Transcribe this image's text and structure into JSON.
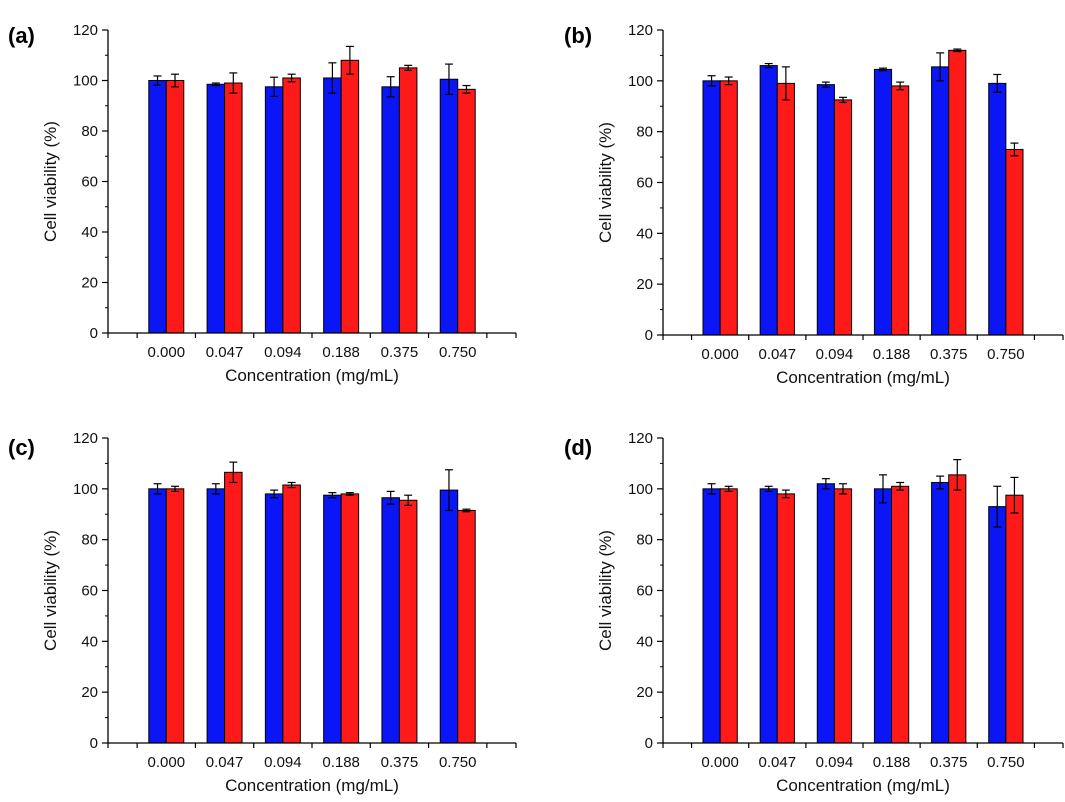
{
  "colors": {
    "series1": "#0a16f5",
    "series2": "#ff1a1a",
    "axis": "#000000",
    "error_bar": "#000000"
  },
  "chart_data": [
    {
      "panel": "(a)",
      "type": "bar",
      "xlabel": "Concentration (mg/mL)",
      "ylabel": "Cell viability (%)",
      "ylim": [
        0,
        120
      ],
      "yticks": [
        "0",
        "20",
        "40",
        "60",
        "80",
        "100",
        "120"
      ],
      "categories": [
        "0.000",
        "0.047",
        "0.094",
        "0.188",
        "0.375",
        "0.750"
      ],
      "grid": false,
      "series": [
        {
          "color": "#0a16f5",
          "values": [
            100,
            98.5,
            97.5,
            101,
            97.5,
            100.5
          ],
          "errors": [
            1.8,
            0.5,
            3.8,
            6,
            4,
            6
          ]
        },
        {
          "color": "#ff1a1a",
          "values": [
            100,
            99,
            101,
            108,
            105,
            96.5
          ],
          "errors": [
            2.5,
            4,
            1.5,
            5.5,
            1,
            1.5
          ]
        }
      ]
    },
    {
      "panel": "(b)",
      "type": "bar",
      "xlabel": "Concentration (mg/mL)",
      "ylabel": "Cell viability (%)",
      "ylim": [
        0,
        120
      ],
      "yticks": [
        "0",
        "20",
        "40",
        "60",
        "80",
        "100",
        "120"
      ],
      "categories": [
        "0.000",
        "0.047",
        "0.094",
        "0.188",
        "0.375",
        "0.750"
      ],
      "grid": false,
      "series": [
        {
          "color": "#0a16f5",
          "values": [
            100,
            106,
            98.5,
            104.5,
            105.5,
            99
          ],
          "errors": [
            2,
            0.8,
            1,
            0.5,
            5.5,
            3.5
          ]
        },
        {
          "color": "#ff1a1a",
          "values": [
            100,
            99,
            92.5,
            98,
            112,
            73
          ],
          "errors": [
            1.5,
            6.5,
            1,
            1.5,
            0.5,
            2.5
          ]
        }
      ]
    },
    {
      "panel": "(c)",
      "type": "bar",
      "xlabel": "Concentration (mg/mL)",
      "ylabel": "Cell viability (%)",
      "ylim": [
        0,
        120
      ],
      "yticks": [
        "0",
        "20",
        "40",
        "60",
        "80",
        "100",
        "120"
      ],
      "categories": [
        "0.000",
        "0.047",
        "0.094",
        "0.188",
        "0.375",
        "0.750"
      ],
      "grid": false,
      "series": [
        {
          "color": "#0a16f5",
          "values": [
            100,
            100,
            98,
            97.5,
            96.5,
            99.5
          ],
          "errors": [
            2,
            2,
            1.5,
            1,
            2.5,
            8
          ]
        },
        {
          "color": "#ff1a1a",
          "values": [
            100,
            106.5,
            101.5,
            98,
            95.5,
            91.5
          ],
          "errors": [
            1,
            4,
            1,
            0.5,
            2,
            0.5
          ]
        }
      ]
    },
    {
      "panel": "(d)",
      "type": "bar",
      "xlabel": "Concentration (mg/mL)",
      "ylabel": "Cell viability (%)",
      "ylim": [
        0,
        120
      ],
      "yticks": [
        "0",
        "20",
        "40",
        "60",
        "80",
        "100",
        "120"
      ],
      "categories": [
        "0.000",
        "0.047",
        "0.094",
        "0.188",
        "0.375",
        "0.750"
      ],
      "grid": false,
      "series": [
        {
          "color": "#0a16f5",
          "values": [
            100,
            100,
            102,
            100,
            102.5,
            93
          ],
          "errors": [
            2,
            1,
            2,
            5.5,
            2.5,
            8
          ]
        },
        {
          "color": "#ff1a1a",
          "values": [
            100,
            98,
            100,
            101,
            105.5,
            97.5
          ],
          "errors": [
            1,
            1.5,
            2,
            1.5,
            6,
            7
          ]
        }
      ]
    }
  ]
}
